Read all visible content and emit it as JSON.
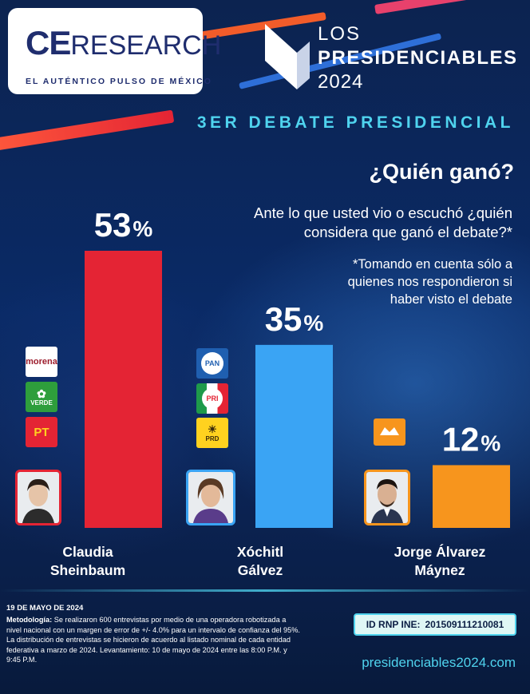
{
  "brand": {
    "logo_ce": "CE",
    "logo_research": "RESEARCH",
    "tagline": "EL AUTÉNTICO PULSO DE MÉXICO"
  },
  "event": {
    "line1": "LOS",
    "line2": "PRESIDENCIABLES",
    "line3": "2024",
    "debate": "3ER DEBATE PRESIDENCIAL"
  },
  "question": {
    "title": "¿Quién ganó?",
    "text": "Ante lo que usted vio o escuchó ¿quién considera que ganó el debate?*",
    "note": "*Tomando en cuenta sólo a quienes nos respondieron si haber visto el debate"
  },
  "chart_data": {
    "type": "bar",
    "categories": [
      "Claudia Sheinbaum",
      "Xóchitl Gálvez",
      "Jorge Álvarez Máynez"
    ],
    "values": [
      53,
      35,
      12
    ],
    "value_labels": [
      "53%",
      "35%",
      "12%"
    ],
    "colors": [
      "#e42434",
      "#3aa4f4",
      "#f7951d"
    ],
    "ylim": [
      0,
      53
    ],
    "title": "¿Quién ganó?"
  },
  "candidates": [
    {
      "first": "Claudia",
      "last": "Sheinbaum",
      "parties": [
        {
          "label": "morena",
          "icon": "morena-logo-icon"
        },
        {
          "label": "VERDE",
          "icon": "verde-logo-icon"
        },
        {
          "label": "PT",
          "icon": "pt-logo-icon"
        }
      ]
    },
    {
      "first": "Xóchitl",
      "last": "Gálvez",
      "parties": [
        {
          "label": "PAN",
          "icon": "pan-logo-icon"
        },
        {
          "label": "PRI",
          "icon": "pri-logo-icon"
        },
        {
          "label": "PRD",
          "icon": "prd-logo-icon"
        }
      ]
    },
    {
      "first": "Jorge Álvarez",
      "last": "Máynez",
      "parties": [
        {
          "label": "",
          "icon": "movimiento-ciudadano-logo-icon"
        }
      ]
    }
  ],
  "footer": {
    "date": "19 DE MAYO DE 2024",
    "method_label": "Metodología:",
    "method_text": "Se realizaron 600 entrevistas por medio de una operadora robotizada a nivel nacional con un margen de error de +/- 4.0% para un intervalo de confianza del 95%. La distribución de entrevistas se hicieron de acuerdo al listado nominal de cada entidad federativa a marzo de 2024. Levantamiento: 10 de mayo de 2024 entre las 8:00 P.M. y 9:45 P.M.",
    "rnp_label": "ID RNP INE:",
    "rnp_value": "201509111210081",
    "site": "presidenciables2024.com"
  }
}
